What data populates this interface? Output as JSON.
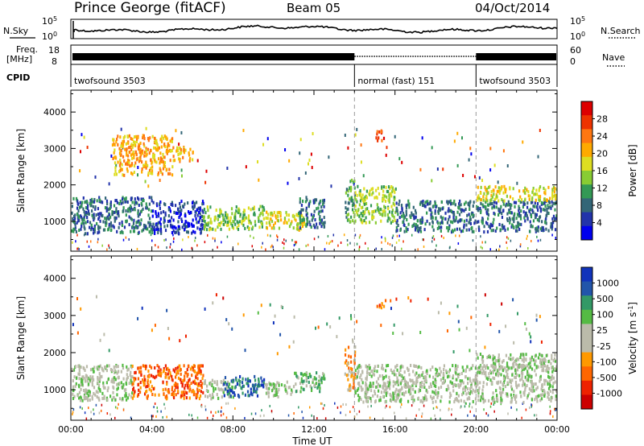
{
  "header": {
    "site": "Prince George (fitACF)",
    "beam": "Beam 05",
    "date": "04/Oct/2014"
  },
  "status_panels": {
    "nsky": {
      "label": "N.Sky",
      "ticks": [
        "10^5",
        "10^0"
      ]
    },
    "nsearch": {
      "label": "N.Search",
      "ticks": [
        "10^5",
        "10^0"
      ]
    },
    "freq": {
      "label_top": "Freq.",
      "label_bottom": "[MHz]",
      "ticks": [
        "18",
        "8"
      ]
    },
    "nave": {
      "label": "Nave",
      "ticks": [
        "60",
        "0"
      ]
    },
    "cpid": {
      "label": "CPID",
      "segments": [
        {
          "name": "twofsound 3503",
          "start_h": 0,
          "end_h": 14
        },
        {
          "name": "normal (fast) 151",
          "start_h": 14,
          "end_h": 20
        },
        {
          "name": "twofsound 3503",
          "start_h": 20,
          "end_h": 24
        }
      ]
    }
  },
  "chart_data": [
    {
      "type": "heatmap",
      "title": "",
      "xlabel": "Time UT",
      "ylabel": "Slant Range [km]",
      "xlim": [
        0,
        24
      ],
      "ylim": [
        180,
        4600
      ],
      "yticks": [
        1000,
        2000,
        3000,
        4000
      ],
      "xticks": [
        "00:00",
        "04:00",
        "08:00",
        "12:00",
        "16:00",
        "20:00",
        "00:00"
      ],
      "mode_change_lines_h": [
        14,
        20
      ],
      "colorbar": {
        "label": "Power [dB]",
        "tick_labels": [
          "28",
          "24",
          "20",
          "16",
          "12",
          "8",
          "4"
        ],
        "colors": [
          "#dd0000",
          "#ee3300",
          "#ff7711",
          "#ffaa00",
          "#dddd22",
          "#88cc33",
          "#339955",
          "#336677",
          "#2233aa",
          "#0000ee"
        ]
      },
      "regions": [
        {
          "t0": 0.0,
          "t1": 4.0,
          "r0": 700,
          "r1": 1700,
          "level": 7
        },
        {
          "t0": 4.0,
          "t1": 6.5,
          "r0": 700,
          "r1": 1600,
          "level": 8
        },
        {
          "t0": 6.5,
          "t1": 9.5,
          "r0": 800,
          "r1": 1450,
          "level": 5
        },
        {
          "t0": 9.5,
          "t1": 11.5,
          "r0": 800,
          "r1": 1300,
          "level": 4
        },
        {
          "t0": 11.2,
          "t1": 12.5,
          "r0": 850,
          "r1": 1700,
          "level": 7
        },
        {
          "t0": 13.5,
          "t1": 14.0,
          "r0": 1000,
          "r1": 2200,
          "level": 6
        },
        {
          "t0": 14.0,
          "t1": 16.0,
          "r0": 1000,
          "r1": 2000,
          "level": 5
        },
        {
          "t0": 16.0,
          "t1": 24.0,
          "r0": 750,
          "r1": 1600,
          "level": 7
        },
        {
          "t0": 20.0,
          "t1": 24.0,
          "r0": 1600,
          "r1": 2000,
          "level": 4
        },
        {
          "t0": 2.0,
          "t1": 5.0,
          "r0": 2300,
          "r1": 3400,
          "level": 3
        },
        {
          "t0": 5.0,
          "t1": 6.0,
          "r0": 2700,
          "r1": 3100,
          "level": 3
        },
        {
          "t0": 15.0,
          "t1": 15.5,
          "r0": 3250,
          "r1": 3550,
          "level": 1
        }
      ]
    },
    {
      "type": "heatmap",
      "title": "",
      "xlabel": "Time UT",
      "ylabel": "Slant Range [km]",
      "xlim": [
        0,
        24
      ],
      "ylim": [
        180,
        4600
      ],
      "yticks": [
        1000,
        2000,
        3000,
        4000
      ],
      "xticks": [
        "00:00",
        "04:00",
        "08:00",
        "12:00",
        "16:00",
        "20:00",
        "00:00"
      ],
      "mode_change_lines_h": [
        14,
        20
      ],
      "colorbar": {
        "label": "Velocity [m s^-1]",
        "tick_labels": [
          "1000",
          "500",
          "100",
          "25",
          "-25",
          "-100",
          "-500",
          "-1000"
        ],
        "colors": [
          "#1133bb",
          "#2255aa",
          "#339966",
          "#55bb44",
          "#bbbbaa",
          "#bbbbaa",
          "#ff9900",
          "#ff6600",
          "#ee2200",
          "#cc0000"
        ]
      },
      "regions": [
        {
          "t0": 0.0,
          "t1": 3.0,
          "r0": 750,
          "r1": 1700,
          "level": 4
        },
        {
          "t0": 3.0,
          "t1": 6.5,
          "r0": 800,
          "r1": 1700,
          "level": 7
        },
        {
          "t0": 6.5,
          "t1": 8.0,
          "r0": 800,
          "r1": 1300,
          "level": 4
        },
        {
          "t0": 7.5,
          "t1": 9.5,
          "r0": 850,
          "r1": 1400,
          "level": 1
        },
        {
          "t0": 9.5,
          "t1": 11.0,
          "r0": 850,
          "r1": 1250,
          "level": 4
        },
        {
          "t0": 11.0,
          "t1": 12.5,
          "r0": 950,
          "r1": 1500,
          "level": 3
        },
        {
          "t0": 13.5,
          "t1": 14.0,
          "r0": 1000,
          "r1": 2200,
          "level": 6
        },
        {
          "t0": 14.0,
          "t1": 24.0,
          "r0": 700,
          "r1": 1700,
          "level": 4
        },
        {
          "t0": 20.0,
          "t1": 24.0,
          "r0": 1600,
          "r1": 2000,
          "level": 4
        },
        {
          "t0": 15.0,
          "t1": 15.5,
          "r0": 3250,
          "r1": 3450,
          "level": 7
        }
      ]
    }
  ]
}
